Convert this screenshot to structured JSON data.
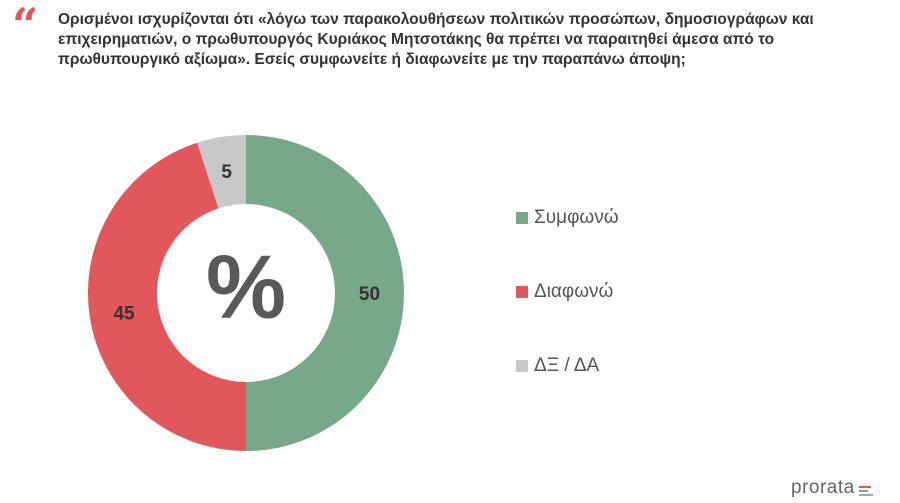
{
  "question": {
    "quote_glyph": "“",
    "text": "Ορισμένοι ισχυρίζονται ότι «λόγω των παρακολουθήσεων πολιτικών προσώπων, δημοσιογράφων και επιχειρηματιών, ο πρωθυπουργός Κυριάκος Μητσοτάκης θα πρέπει να παραιτηθεί άμεσα από το πρωθυπουργικό αξίωμα». Εσείς συμφωνείτε ή διαφωνείτε με την παραπάνω άποψη;"
  },
  "chart_data": {
    "type": "pie",
    "variant": "donut",
    "center_label": "%",
    "slices": [
      {
        "label": "Συμφωνώ",
        "value": 50,
        "color": "#77a889"
      },
      {
        "label": "Διαφωνώ",
        "value": 45,
        "color": "#e2575c"
      },
      {
        "label": "ΔΞ / ΔΑ",
        "value": 5,
        "color": "#c8c8c8"
      }
    ],
    "start_angle_deg": 0,
    "direction": "clockwise",
    "legend_position": "right",
    "label_color": "#333333"
  },
  "brand": {
    "name": "prorata",
    "bar_colors": [
      "#e2575c",
      "#77a889",
      "#7fb3d9"
    ]
  }
}
